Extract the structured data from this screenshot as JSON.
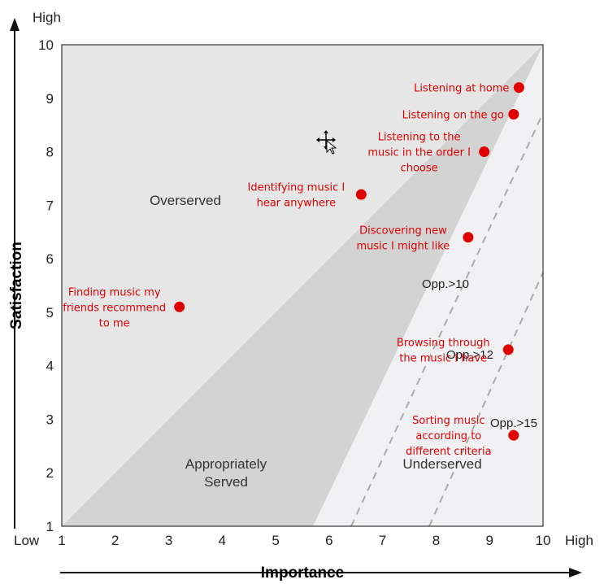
{
  "chart_data": {
    "type": "scatter",
    "xlabel": "Importance",
    "ylabel": "Satisfaction",
    "xlim": [
      1,
      10
    ],
    "ylim": [
      1,
      10
    ],
    "x_ticks": [
      "1",
      "2",
      "3",
      "4",
      "5",
      "6",
      "7",
      "8",
      "9",
      "10"
    ],
    "y_ticks": [
      "1",
      "2",
      "3",
      "4",
      "5",
      "6",
      "7",
      "8",
      "9",
      "10"
    ],
    "x_low_label": "Low",
    "x_high_label": "High",
    "y_high_label": "High",
    "regions": {
      "overserved": "Overserved",
      "appropriately_served_1": "Appropriately",
      "appropriately_served_2": "Served",
      "underserved": "Underserved"
    },
    "opportunity_lines": [
      {
        "label": "Opp.>10"
      },
      {
        "label": "Opp.>12"
      },
      {
        "label": "Opp.>15"
      }
    ],
    "point_color": "#e00000",
    "points": [
      {
        "x": 9.55,
        "y": 9.2,
        "label_lines": [
          "Listening at home"
        ]
      },
      {
        "x": 9.45,
        "y": 8.7,
        "label_lines": [
          "Listening on the go"
        ]
      },
      {
        "x": 8.9,
        "y": 8.0,
        "label_lines": [
          "Listening to the",
          "music in the order I",
          "choose"
        ]
      },
      {
        "x": 6.6,
        "y": 7.2,
        "label_lines": [
          "Identifying music I",
          "hear anywhere"
        ]
      },
      {
        "x": 8.6,
        "y": 6.4,
        "label_lines": [
          "Discovering new",
          "music I might like"
        ]
      },
      {
        "x": 3.2,
        "y": 5.1,
        "label_lines": [
          "Finding music my",
          "friends recommend",
          "to me"
        ]
      },
      {
        "x": 9.35,
        "y": 4.3,
        "label_lines": [
          "Browsing through",
          "the music I have"
        ]
      },
      {
        "x": 9.45,
        "y": 2.7,
        "label_lines": [
          "Sorting  music",
          "according to",
          "different criteria"
        ]
      }
    ]
  }
}
